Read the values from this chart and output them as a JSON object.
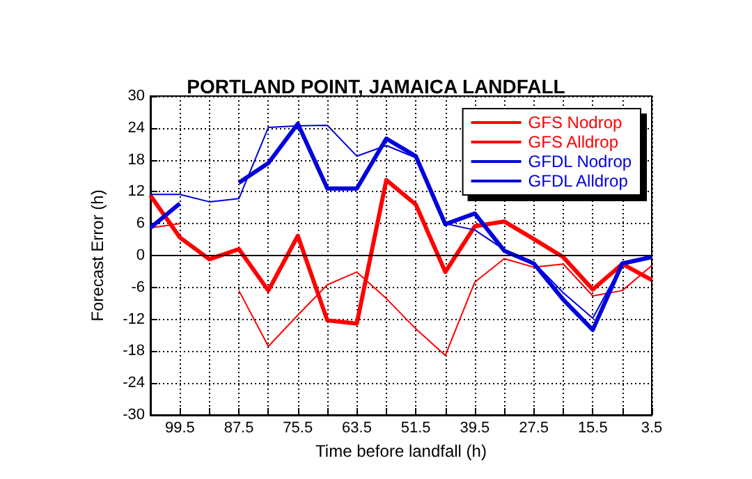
{
  "chart_data": {
    "type": "line",
    "title": "PORTLAND POINT, JAMAICA LANDFALL",
    "xlabel": "Time before landfall (h)",
    "ylabel": "Forecast Error (h)",
    "x": [
      105.5,
      99.5,
      93.5,
      87.5,
      81.5,
      75.5,
      69.5,
      63.5,
      57.5,
      51.5,
      45.5,
      39.5,
      33.5,
      27.5,
      21.5,
      15.5,
      9.5,
      3.5
    ],
    "series": [
      {
        "name": "GFS Nodrop",
        "color": "#ff0000",
        "values": [
          5.2,
          6.0,
          null,
          -6.6,
          -17.1,
          -11.2,
          -5.5,
          -3.1,
          -8.1,
          -13.8,
          -18.8,
          -5.0,
          -0.6,
          -2.2,
          -1.6,
          -7.6,
          -6.6,
          -1.9
        ]
      },
      {
        "name": "GFS Alldrop",
        "color": "#ff0000",
        "values": [
          11.3,
          3.4,
          -0.7,
          1.2,
          -6.6,
          3.7,
          -12.2,
          -12.8,
          14.2,
          9.6,
          -3.1,
          5.5,
          6.4,
          3.1,
          -0.3,
          -6.4,
          -1.6,
          -4.6
        ]
      },
      {
        "name": "GFDL Nodrop",
        "color": "#0000dd",
        "values": [
          11.5,
          11.5,
          10.1,
          10.7,
          24.1,
          24.4,
          24.5,
          18.7,
          20.7,
          18.4,
          6.0,
          4.8,
          1.1,
          -1.3,
          -7.0,
          -11.8,
          -1.6,
          -0.4
        ]
      },
      {
        "name": "GFDL Alldrop",
        "color": "#0000dd",
        "values": [
          5.2,
          9.8,
          null,
          13.7,
          17.4,
          24.8,
          12.6,
          12.6,
          22.0,
          18.7,
          5.9,
          7.9,
          0.9,
          -1.5,
          -8.3,
          -14.0,
          -1.5,
          -0.3
        ]
      }
    ],
    "xlim": [
      105.5,
      3.5
    ],
    "xticks": [
      99.5,
      {
        "value": 93.5,
        "label": null
      },
      87.5,
      {
        "value": 81.5,
        "label": null
      },
      75.5,
      {
        "value": 69.5,
        "label": null
      },
      63.5,
      {
        "value": 57.5,
        "label": null
      },
      51.5,
      {
        "value": 45.5,
        "label": null
      },
      39.5,
      {
        "value": 33.5,
        "label": null
      },
      27.5,
      {
        "value": 21.5,
        "label": null
      },
      15.5,
      {
        "value": 9.5,
        "label": null
      },
      3.5
    ],
    "ylim": [
      -30,
      30
    ],
    "yticks": [
      -30,
      -24,
      -18,
      -12,
      -6,
      0,
      6,
      12,
      18,
      24,
      30
    ],
    "ref_lines": [
      {
        "axis": "y",
        "value": 0,
        "color": "#000000"
      }
    ],
    "grid": true,
    "legend": "top right",
    "marker": "none",
    "line_style": "solid"
  }
}
